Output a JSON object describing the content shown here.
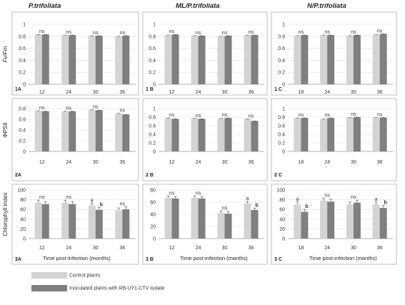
{
  "column_titles": [
    "P.trifoliata",
    "ML/P.trifoliata",
    "N/P.trifoliata"
  ],
  "legend": {
    "control_label": "Control plants",
    "inoculated_label": "Inoculated plants with RB-UY1-CTV isolate"
  },
  "colors": {
    "control": "#d3d3d3",
    "inoculated": "#7f7f7f",
    "grid": "#c8c8c8",
    "frame": "#bfbfbf"
  },
  "chart_data": [
    {
      "panel": "1A",
      "type": "bar",
      "ylabel": "Fv/Fm",
      "xlabel": "",
      "ylim": [
        0,
        1
      ],
      "yticks": [
        "0",
        "0.2",
        "0.4",
        "0.6",
        "0.8",
        "1"
      ],
      "categories": [
        "12",
        "24",
        "30",
        "36"
      ],
      "series": [
        {
          "name": "Control plants",
          "values": [
            0.83,
            0.82,
            0.81,
            0.8
          ]
        },
        {
          "name": "Inoculated plants with RB-UY1-CTV isolate",
          "values": [
            0.83,
            0.82,
            0.81,
            0.81
          ]
        }
      ],
      "annotations": [
        [
          "ns",
          ""
        ],
        [
          "ns",
          ""
        ],
        [
          "ns",
          ""
        ],
        [
          "ns",
          ""
        ]
      ]
    },
    {
      "panel": "1B",
      "type": "bar",
      "ylabel": "",
      "xlabel": "",
      "ylim": [
        0,
        1
      ],
      "yticks": [
        "0",
        "0.2",
        "0.4",
        "0.6",
        "0.8",
        "1"
      ],
      "categories": [
        "12",
        "24",
        "30",
        "36"
      ],
      "series": [
        {
          "name": "Control plants",
          "values": [
            0.82,
            0.81,
            0.8,
            0.82
          ]
        },
        {
          "name": "Inoculated plants with RB-UY1-CTV isolate",
          "values": [
            0.83,
            0.81,
            0.81,
            0.82
          ]
        }
      ],
      "annotations": [
        [
          "ns",
          ""
        ],
        [
          "ns",
          ""
        ],
        [
          "ns",
          ""
        ],
        [
          "ns",
          ""
        ]
      ]
    },
    {
      "panel": "1C",
      "type": "bar",
      "ylabel": "",
      "xlabel": "",
      "ylim": [
        0,
        1
      ],
      "yticks": [
        "0",
        "0.2",
        "0.4",
        "0.6",
        "0.8",
        "1"
      ],
      "categories": [
        "18",
        "24",
        "30",
        "36"
      ],
      "series": [
        {
          "name": "Control plants",
          "values": [
            0.81,
            0.82,
            0.81,
            0.83
          ]
        },
        {
          "name": "Inoculated plants with RB-UY1-CTV isolate",
          "values": [
            0.82,
            0.82,
            0.82,
            0.84
          ]
        }
      ],
      "annotations": [
        [
          "ns",
          ""
        ],
        [
          "ns",
          ""
        ],
        [
          "ns",
          ""
        ],
        [
          "ns",
          ""
        ]
      ]
    },
    {
      "panel": "2A",
      "type": "bar",
      "ylabel": "ΦPSII",
      "xlabel": "",
      "ylim": [
        0,
        0.8
      ],
      "yticks": [
        "0",
        "0.2",
        "0.4",
        "0.6",
        "0.8"
      ],
      "categories": [
        "12",
        "24",
        "30",
        "36"
      ],
      "series": [
        {
          "name": "Control plants",
          "values": [
            0.76,
            0.75,
            0.78,
            0.71
          ]
        },
        {
          "name": "Inoculated plants with RB-UY1-CTV isolate",
          "values": [
            0.75,
            0.75,
            0.77,
            0.69
          ]
        }
      ],
      "annotations": [
        [
          "ns",
          ""
        ],
        [
          "ns",
          ""
        ],
        [
          "ns",
          ""
        ],
        [
          "ns",
          ""
        ]
      ]
    },
    {
      "panel": "2B",
      "type": "bar",
      "ylabel": "",
      "xlabel": "",
      "ylim": [
        0,
        1
      ],
      "yticks": [
        "0",
        "0.2",
        "0.4",
        "0.6",
        "0.8",
        "1"
      ],
      "categories": [
        "12",
        "24",
        "30",
        "36"
      ],
      "series": [
        {
          "name": "Control plants",
          "values": [
            0.78,
            0.77,
            0.77,
            0.76
          ]
        },
        {
          "name": "Inoculated plants with RB-UY1-CTV isolate",
          "values": [
            0.76,
            0.76,
            0.78,
            0.71
          ]
        }
      ],
      "annotations": [
        [
          "ns",
          ""
        ],
        [
          "ns",
          ""
        ],
        [
          "ns",
          ""
        ],
        [
          "ns",
          ""
        ]
      ]
    },
    {
      "panel": "2C",
      "type": "bar",
      "ylabel": "",
      "xlabel": "",
      "ylim": [
        0,
        1
      ],
      "yticks": [
        "0",
        "0.2",
        "0.4",
        "0.6",
        "0.8",
        "1"
      ],
      "categories": [
        "18",
        "24",
        "30",
        "36"
      ],
      "series": [
        {
          "name": "Control plants",
          "values": [
            0.78,
            0.76,
            0.79,
            0.79
          ]
        },
        {
          "name": "Inoculated plants with RB-UY1-CTV isolate",
          "values": [
            0.78,
            0.78,
            0.8,
            0.79
          ]
        }
      ],
      "annotations": [
        [
          "ns",
          ""
        ],
        [
          "ns",
          ""
        ],
        [
          "ns",
          ""
        ],
        [
          "ns",
          ""
        ]
      ]
    },
    {
      "panel": "3A",
      "type": "bar",
      "ylabel": "Chlorophyll index",
      "xlabel": "Time post-infection (months)",
      "ylim": [
        0,
        100
      ],
      "yticks": [
        "0",
        "20",
        "40",
        "60",
        "80",
        "100"
      ],
      "categories": [
        "12",
        "24",
        "30",
        "36"
      ],
      "series": [
        {
          "name": "Control plants",
          "values": [
            74,
            74,
            68,
            58
          ]
        },
        {
          "name": "Inoculated plants with RB-UY1-CTV isolate",
          "values": [
            71,
            71,
            59,
            60
          ]
        }
      ],
      "annotations": [
        [
          "ns",
          ""
        ],
        [
          "ns",
          ""
        ],
        [
          "a",
          "b"
        ],
        [
          "ns",
          ""
        ]
      ]
    },
    {
      "panel": "3B",
      "type": "bar",
      "ylabel": "",
      "xlabel": "Time post-infection  (months)",
      "ylim": [
        0,
        80
      ],
      "yticks": [
        "0",
        "20",
        "40",
        "60",
        "80"
      ],
      "categories": [
        "12",
        "24",
        "30",
        "36"
      ],
      "series": [
        {
          "name": "Control plants",
          "values": [
            67,
            67,
            42,
            58
          ]
        },
        {
          "name": "Inoculated plants with RB-UY1-CTV isolate",
          "values": [
            66,
            66,
            41,
            47
          ]
        }
      ],
      "annotations": [
        [
          "ns",
          ""
        ],
        [
          "ns",
          ""
        ],
        [
          "ns",
          ""
        ],
        [
          "a",
          "b"
        ]
      ]
    },
    {
      "panel": "3C",
      "type": "bar",
      "ylabel": "",
      "xlabel": "Time post-infection  (months)",
      "ylim": [
        0,
        100
      ],
      "yticks": [
        "0",
        "20",
        "40",
        "60",
        "80",
        "100"
      ],
      "categories": [
        "18",
        "24",
        "30",
        "36"
      ],
      "series": [
        {
          "name": "Control plants",
          "values": [
            70,
            78,
            70,
            70
          ]
        },
        {
          "name": "Inoculated plants with RB-UY1-CTV isolate",
          "values": [
            55,
            76,
            74,
            63
          ]
        }
      ],
      "annotations": [
        [
          "a",
          "b"
        ],
        [
          "ns",
          ""
        ],
        [
          "ns",
          ""
        ],
        [
          "a",
          "b"
        ]
      ]
    }
  ]
}
